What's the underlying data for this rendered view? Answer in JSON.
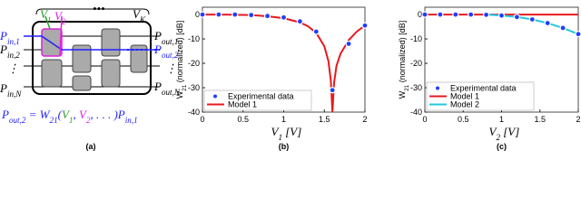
{
  "diagram": {
    "labels": [
      {
        "base": "V",
        "sub": "1",
        "color": "#2ca02c"
      },
      {
        "base": "V",
        "sub": "2",
        "color": "#e020e0"
      },
      {
        "base": "•••"
      },
      {
        "base": "V",
        "sub": "K"
      },
      {
        "base": "P",
        "sub": "in,1",
        "color": "#2020ff"
      },
      {
        "base": "P",
        "sub": "in,2"
      },
      {
        "base": "⋮"
      },
      {
        "base": "P",
        "sub": "in,N"
      },
      {
        "base": "P",
        "sub": "out,1"
      },
      {
        "base": "P",
        "sub": "out,2",
        "color": "#2020ff"
      },
      {
        "base": "⋮"
      },
      {
        "base": "P",
        "sub": "out,N"
      }
    ],
    "formula": [
      {
        "base": "P",
        "sub": "out,2",
        "color": "#2020ff"
      },
      {
        "base": " = W",
        "sub": "21",
        "color": "#2020ff"
      },
      {
        "base": "(",
        "color": "#2020ff"
      },
      {
        "base": "V",
        "sub": "1",
        "color": "#2ca02c"
      },
      {
        "base": ", ",
        "color": "#2020ff"
      },
      {
        "base": "V",
        "sub": "2",
        "color": "#e020e0"
      },
      {
        "base": ", . . . )",
        "color": "#2020ff"
      },
      {
        "base": "P",
        "sub": "in,1",
        "color": "#2020ff"
      }
    ],
    "caption": "(a)"
  },
  "chart_data": [
    {
      "type": "line",
      "caption": "(b)",
      "xlabel": [
        {
          "base": "V",
          "sub": "1"
        },
        {
          "base": " [V]"
        }
      ],
      "ylabel": [
        {
          "base": "W",
          "sub": "21"
        },
        {
          "base": " (normalized) [dB]"
        }
      ],
      "xlim": [
        0,
        2
      ],
      "ylim": [
        -40,
        3
      ],
      "xticks": [
        0,
        0.5,
        1,
        1.5,
        2
      ],
      "yticks": [
        0,
        -10,
        -20,
        -30,
        -40
      ],
      "legend": "lower left",
      "series": [
        {
          "name": "Experimental data",
          "style": "markers",
          "color": "#1f3fff",
          "x": [
            0,
            0.2,
            0.4,
            0.6,
            0.8,
            1.0,
            1.2,
            1.4,
            1.6,
            1.8,
            2.0
          ],
          "values": [
            0,
            0,
            0,
            -0.2,
            -0.6,
            -1.2,
            -2.8,
            -7,
            -31,
            -12,
            -4.5
          ]
        },
        {
          "name": "Model 1",
          "style": "line",
          "color": "#e8191c",
          "x": [
            0,
            0.2,
            0.4,
            0.6,
            0.8,
            1.0,
            1.2,
            1.3,
            1.4,
            1.5,
            1.55,
            1.58,
            1.6,
            1.62,
            1.65,
            1.7,
            1.8,
            1.9,
            2.0
          ],
          "values": [
            0,
            0,
            -0.1,
            -0.2,
            -0.7,
            -1.5,
            -3.2,
            -4.8,
            -7.5,
            -13,
            -19,
            -27,
            -40,
            -28,
            -21,
            -16,
            -10.5,
            -7,
            -4.5
          ]
        }
      ]
    },
    {
      "type": "line",
      "caption": "(c)",
      "xlabel": [
        {
          "base": "V",
          "sub": "2"
        },
        {
          "base": " [V]"
        }
      ],
      "ylabel": [
        {
          "base": "W",
          "sub": "21"
        },
        {
          "base": " (normalized) [dB]"
        }
      ],
      "xlim": [
        0,
        2
      ],
      "ylim": [
        -40,
        3
      ],
      "xticks": [
        0,
        0.5,
        1,
        1.5,
        2
      ],
      "yticks": [
        0,
        -10,
        -20,
        -30,
        -40
      ],
      "legend": "lower left",
      "series": [
        {
          "name": "Experimental data",
          "style": "markers",
          "color": "#1f3fff",
          "x": [
            0,
            0.2,
            0.4,
            0.6,
            0.8,
            1.0,
            1.2,
            1.4,
            1.6,
            1.8,
            2.0
          ],
          "values": [
            0,
            0,
            0,
            0,
            -0.1,
            -0.4,
            -1,
            -2,
            -3.5,
            -5.5,
            -8
          ]
        },
        {
          "name": "Model 1",
          "style": "line",
          "color": "#e8191c",
          "x": [
            0,
            2
          ],
          "values": [
            0,
            0
          ]
        },
        {
          "name": "Model 2",
          "style": "line",
          "color": "#22c8e0",
          "x": [
            0.8,
            1.0,
            1.2,
            1.4,
            1.6,
            1.8,
            2.0
          ],
          "values": [
            0,
            -0.4,
            -1,
            -2,
            -3.5,
            -5.5,
            -8
          ]
        }
      ]
    }
  ]
}
